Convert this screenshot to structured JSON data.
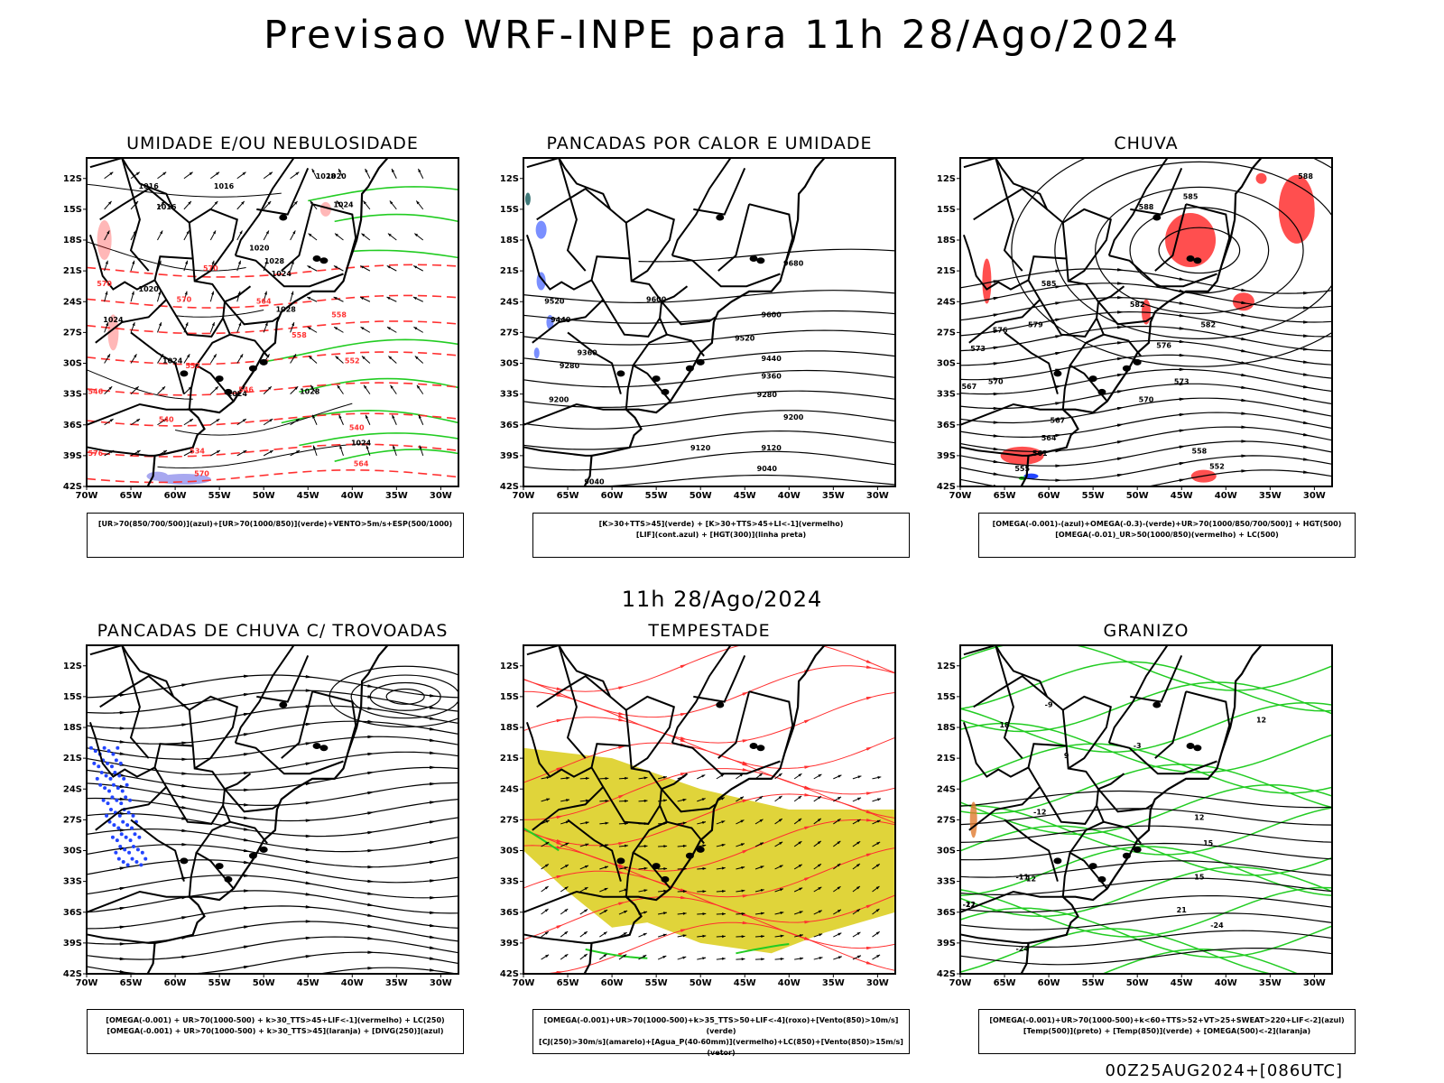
{
  "main_title": "Previsao WRF-INPE  para 11h 28/Ago/2024",
  "mid_title": "11h 28/Ago/2024",
  "footer": "00Z25AUG2024+[086UTC]",
  "axes": {
    "lat_ticks": [
      "12S",
      "15S",
      "18S",
      "21S",
      "24S",
      "27S",
      "30S",
      "33S",
      "36S",
      "39S",
      "42S"
    ],
    "lon_ticks": [
      "70W",
      "65W",
      "60W",
      "55W",
      "50W",
      "45W",
      "40W",
      "35W",
      "30W"
    ]
  },
  "colors": {
    "red": "#ff3030",
    "green": "#22cc22",
    "blue": "#2244ff",
    "yellow": "#e0d43a",
    "orange": "#e07a30",
    "lavender": "#a8a8f0"
  },
  "chart_data": [
    {
      "type": "heatmap",
      "title": "UMIDADE E/OU NEBULOSIDADE",
      "legend": [
        "[UR>70(850/700/500)](azul)+[UR>70(1000/850)](verde)+VENTO>5m/s+ESP(500/1000)"
      ],
      "contour_labels": [
        "1016",
        "1016",
        "1016",
        "1020",
        "1020",
        "1020",
        "1024",
        "1024",
        "1024",
        "1028",
        "1028",
        "1028",
        "1024",
        "1028",
        "1024",
        "1024"
      ],
      "thickness_labels": [
        "570",
        "570",
        "570",
        "564",
        "558",
        "558",
        "552",
        "552",
        "546",
        "546",
        "540",
        "540",
        "534",
        "576",
        "570",
        "564"
      ],
      "xlim": [
        -70,
        -28
      ],
      "ylim": [
        -42,
        -10
      ]
    },
    {
      "type": "line",
      "title": "PANCADAS POR CALOR E UMIDADE",
      "legend": [
        "[K>30+TTS>45](verde) + [K>30+TTS>45+LI<-1](vermelho)",
        "[LIF](cont.azul) + [HGT(300)](linha preta)"
      ],
      "contour_labels": [
        "9680",
        "9600",
        "9600",
        "9520",
        "9520",
        "9440",
        "9440",
        "9360",
        "9360",
        "9280",
        "9280",
        "9200",
        "9200",
        "9120",
        "9120",
        "9040",
        "9040"
      ],
      "xlim": [
        -70,
        -28
      ],
      "ylim": [
        -42,
        -10
      ]
    },
    {
      "type": "line",
      "title": "CHUVA",
      "legend": [
        "[OMEGA(-0.001)-(azul)+OMEGA(-0.3)-(verde)+UR>70(1000/850/700/500)] + HGT(500)",
        "[OMEGA(-0.01)_UR>50(1000/850)(vermelho) + LC(500)"
      ],
      "contour_labels": [
        "588",
        "585",
        "585",
        "582",
        "582",
        "579",
        "576",
        "576",
        "573",
        "573",
        "570",
        "570",
        "567",
        "567",
        "564",
        "561",
        "558",
        "552",
        "555",
        "588"
      ],
      "xlim": [
        -70,
        -28
      ],
      "ylim": [
        -42,
        -10
      ]
    },
    {
      "type": "line",
      "title": "PANCADAS DE CHUVA C/ TROVOADAS",
      "legend": [
        "[OMEGA(-0.001) + UR>70(1000-500) + k>30_TTS>45+LIF<-1](vermelho) + LC(250)",
        "[OMEGA(-0.001) + UR>70(1000-500) + k>30_TTS>45](laranja) + [DIVG(250)](azul)"
      ],
      "contour_labels": [],
      "xlim": [
        -70,
        -28
      ],
      "ylim": [
        -42,
        -10
      ]
    },
    {
      "type": "line",
      "title": "TEMPESTADE",
      "legend": [
        "[OMEGA(-0.001)+UR>70(1000-500)+k>35_TTS>50+LIF<-4](roxo)+[Vento(850)>10m/s](verde)",
        "[CJ(250)>30m/s](amarelo)+[Agua_P(40-60mm)](vermelho)+LC(850)+[Vento(850)>15m/s](vetor)"
      ],
      "contour_labels": [],
      "xlim": [
        -70,
        -28
      ],
      "ylim": [
        -42,
        -10
      ]
    },
    {
      "type": "line",
      "title": "GRANIZO",
      "legend": [
        "[OMEGA(-0.001)+UR>70(1000-500)+k<60+TTS>52+VT>25+SWEAT>220+LIF<-2](azul)",
        "[Temp(500)](preto) + [Temp(850)](verde) + [OMEGA(500)<-2](laranja)"
      ],
      "contour_labels": [
        "-3",
        "12",
        "-12",
        "12",
        "15",
        "-11",
        "15",
        "-12",
        "-21",
        "21",
        "-24",
        "-24",
        "18",
        "12",
        "9",
        "-9"
      ],
      "xlim": [
        -70,
        -28
      ],
      "ylim": [
        -42,
        -10
      ]
    }
  ]
}
